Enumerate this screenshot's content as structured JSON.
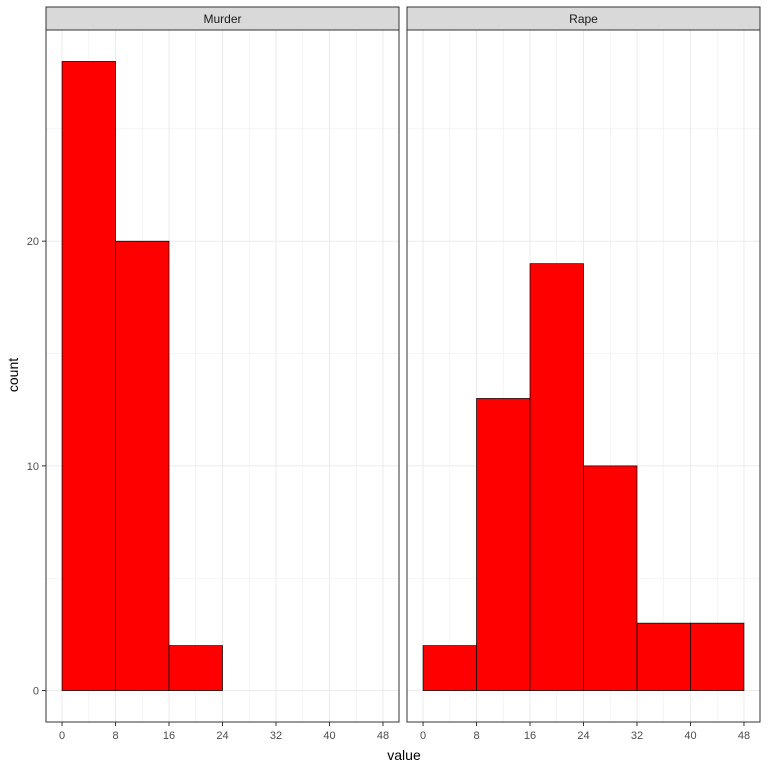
{
  "chart_data": {
    "type": "bar",
    "subtype": "histogram",
    "xlabel": "value",
    "ylabel": "count",
    "xticks": [
      0,
      8,
      16,
      24,
      32,
      40,
      48
    ],
    "yticks": [
      0,
      10,
      20
    ],
    "xlim": [
      -2.4,
      50.4
    ],
    "ylim": [
      -1.4,
      29.4
    ],
    "grid": true,
    "colors": {
      "fill": "#ff0000",
      "outline": "#000000",
      "strip": "#d9d9d9",
      "grid": "#ebebeb"
    },
    "panels": [
      {
        "name": "Murder",
        "bins": [
          {
            "x0": 0,
            "x1": 8,
            "count": 28
          },
          {
            "x0": 8,
            "x1": 16,
            "count": 20
          },
          {
            "x0": 16,
            "x1": 24,
            "count": 2
          },
          {
            "x0": 24,
            "x1": 32,
            "count": 0
          },
          {
            "x0": 32,
            "x1": 40,
            "count": 0
          },
          {
            "x0": 40,
            "x1": 48,
            "count": 0
          }
        ]
      },
      {
        "name": "Rape",
        "bins": [
          {
            "x0": 0,
            "x1": 8,
            "count": 2
          },
          {
            "x0": 8,
            "x1": 16,
            "count": 13
          },
          {
            "x0": 16,
            "x1": 24,
            "count": 19
          },
          {
            "x0": 24,
            "x1": 32,
            "count": 10
          },
          {
            "x0": 32,
            "x1": 40,
            "count": 3
          },
          {
            "x0": 40,
            "x1": 48,
            "count": 3
          }
        ]
      }
    ]
  }
}
